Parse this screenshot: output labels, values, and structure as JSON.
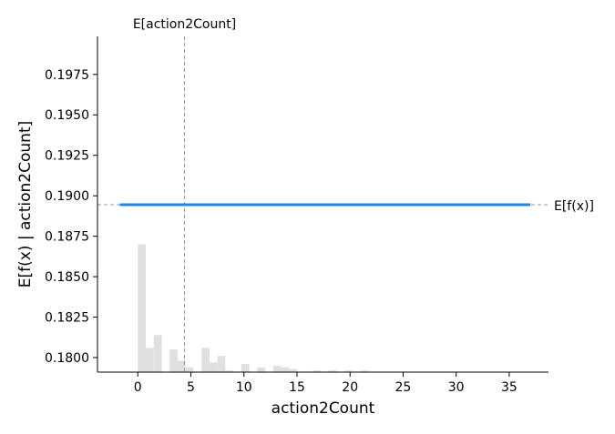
{
  "chart_data": {
    "type": "line",
    "xlabel": "action2Count",
    "ylabel": "E[f(x) | action2Count]",
    "xlim": [
      -3.8,
      38.7
    ],
    "ylim": [
      0.1791,
      0.19985
    ],
    "x_ticks": [
      0,
      5,
      10,
      15,
      20,
      25,
      30,
      35
    ],
    "y_ticks": [
      0.18,
      0.1825,
      0.185,
      0.1875,
      0.19,
      0.1925,
      0.195,
      0.1975
    ],
    "y_tick_labels": [
      "0.1800",
      "0.1825",
      "0.1850",
      "0.1875",
      "0.1900",
      "0.1925",
      "0.1950",
      "0.1975"
    ],
    "series": [
      {
        "x": [
          -1.7,
          37.0
        ],
        "y": [
          0.18945,
          0.18945
        ],
        "color": "#1e88e5"
      }
    ],
    "expected_value_line": {
      "y": 0.18945,
      "label": "E[f(x)]"
    },
    "expected_feature_line": {
      "x": 4.4,
      "label": "E[action2Count]"
    },
    "histogram": {
      "color": "#e0e0e0",
      "bin_width": 0.75,
      "bins": [
        {
          "x": 0.0,
          "h": 0.187
        },
        {
          "x": 0.75,
          "h": 0.1806
        },
        {
          "x": 1.5,
          "h": 0.1814
        },
        {
          "x": 3.0,
          "h": 0.1805
        },
        {
          "x": 3.75,
          "h": 0.1798
        },
        {
          "x": 4.5,
          "h": 0.1794
        },
        {
          "x": 6.0,
          "h": 0.1806
        },
        {
          "x": 6.75,
          "h": 0.1797
        },
        {
          "x": 7.5,
          "h": 0.1801
        },
        {
          "x": 8.25,
          "h": 0.1792
        },
        {
          "x": 9.75,
          "h": 0.1796
        },
        {
          "x": 11.25,
          "h": 0.1794
        },
        {
          "x": 12.75,
          "h": 0.1795
        },
        {
          "x": 13.5,
          "h": 0.1794
        },
        {
          "x": 14.25,
          "h": 0.1793
        },
        {
          "x": 16.5,
          "h": 0.1792
        },
        {
          "x": 18.0,
          "h": 0.1792
        },
        {
          "x": 19.5,
          "h": 0.1792
        },
        {
          "x": 21.0,
          "h": 0.1792
        }
      ]
    }
  }
}
